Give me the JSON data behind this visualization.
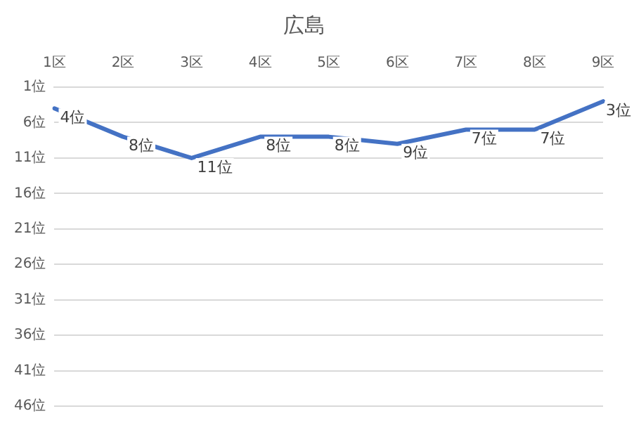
{
  "chart_data": {
    "type": "line",
    "title": "広島",
    "categories": [
      "1区",
      "2区",
      "3区",
      "4区",
      "5区",
      "6区",
      "7区",
      "8区",
      "9区"
    ],
    "series": [
      {
        "color": "#4472c4",
        "values": [
          4,
          8,
          11,
          8,
          8,
          9,
          7,
          7,
          3
        ],
        "value_labels": [
          "4位",
          "8位",
          "11位",
          "8位",
          "8位",
          "9位",
          "7位",
          "7位",
          "3位"
        ]
      }
    ],
    "ylim": [
      46,
      1
    ],
    "yticks": [
      {
        "value": 1,
        "label": "1位"
      },
      {
        "value": 6,
        "label": "6位"
      },
      {
        "value": 11,
        "label": "11位"
      },
      {
        "value": 16,
        "label": "16位"
      },
      {
        "value": 21,
        "label": "21位"
      },
      {
        "value": 26,
        "label": "26位"
      },
      {
        "value": 31,
        "label": "31位"
      },
      {
        "value": 36,
        "label": "36位"
      },
      {
        "value": 41,
        "label": "41位"
      },
      {
        "value": 46,
        "label": "46位"
      }
    ],
    "grid": "y",
    "legend": false,
    "marker": "none",
    "line_style": "solid"
  }
}
